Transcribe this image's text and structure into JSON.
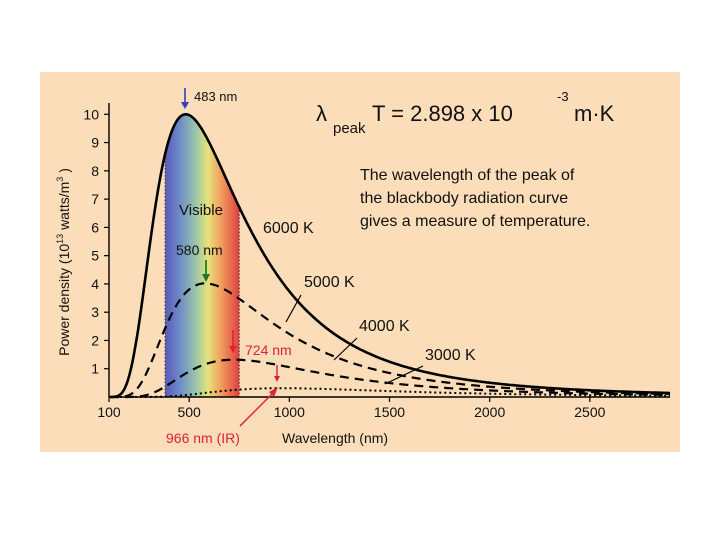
{
  "colors": {
    "panel_background": "#FBDDB9",
    "page_background": "#FFFFFF",
    "curve": "#000000",
    "peak_arrow_483": "#3A3AC8",
    "peak_arrow_580": "#1F7A2E",
    "peak_arrow_ir": "#E0203A",
    "ir_label": "#E0203A",
    "visible_band": [
      "#5A5AB8",
      "#6E8CC8",
      "#9CC7A8",
      "#E8E27A",
      "#F1A060",
      "#E04040"
    ]
  },
  "equation": {
    "lambda": "λ",
    "subscript": "peak",
    "body": "T = 2.898  x 10",
    "exponent": "-3",
    "units": "m·K"
  },
  "description": {
    "lines": [
      "The wavelength of the peak of",
      "the blackbody radiation curve",
      "gives a measure of temperature."
    ]
  },
  "visible_band_label": "Visible",
  "chart_data": {
    "type": "line",
    "xlabel": "Wavelength (nm)",
    "ylabel_main": "Power density (10",
    "ylabel_exp1": "13",
    "ylabel_mid": " watts/m",
    "ylabel_exp2": "3",
    "ylabel_end": " )",
    "xlim": [
      100,
      2900
    ],
    "ylim": [
      0,
      10.4
    ],
    "x_ticks": [
      100,
      500,
      1000,
      1500,
      2000,
      2500
    ],
    "y_ticks": [
      1,
      2,
      3,
      4,
      5,
      6,
      7,
      8,
      9,
      10
    ],
    "visible_band_range": [
      380,
      750
    ],
    "legend": "inline labels",
    "series": [
      {
        "name": "6000 K",
        "temperature": 6000,
        "peak_nm": 483,
        "peak_value": 10.0,
        "style": "solid"
      },
      {
        "name": "5000 K",
        "temperature": 5000,
        "peak_nm": 580,
        "peak_value": 4.02,
        "style": "dashed"
      },
      {
        "name": "4000 K",
        "temperature": 4000,
        "peak_nm": 724,
        "peak_value": 1.32,
        "style": "dashed"
      },
      {
        "name": "3000 K",
        "temperature": 3000,
        "peak_nm": 966,
        "peak_value": 0.31,
        "style": "dotted"
      }
    ],
    "peak_annotations": [
      {
        "label": "483 nm",
        "x": 483,
        "color": "#3A3AC8"
      },
      {
        "label": "580 nm",
        "x": 580,
        "color": "#1F7A2E"
      },
      {
        "label": "724 nm",
        "x": 724,
        "color": "#E0203A"
      },
      {
        "label": "966 nm (IR)",
        "x": 966,
        "color": "#E0203A"
      }
    ]
  }
}
